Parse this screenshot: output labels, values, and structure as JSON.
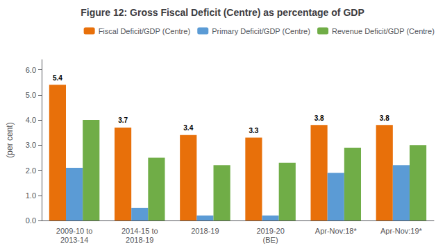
{
  "chart_data": {
    "type": "bar",
    "title": "Figure 12: Gross Fiscal Deficit (Centre) as percentage of GDP",
    "ylabel": "(per cent)",
    "categories": [
      "2009-10 to\n2013-14",
      "2014-15 to\n2018-19",
      "2018-19",
      "2019-20\n(BE)",
      "Apr-Nov:18*",
      "Apr-Nov:19*"
    ],
    "series": [
      {
        "name": "Fiscal Deficit/GDP (Centre)",
        "color": "#E8700A",
        "values": [
          5.4,
          3.7,
          3.4,
          3.3,
          3.8,
          3.8
        ],
        "data_labels": true
      },
      {
        "name": "Primary Deficit/GDP (Centre)",
        "color": "#5B9BD5",
        "values": [
          2.1,
          0.5,
          0.2,
          0.2,
          1.9,
          2.2
        ]
      },
      {
        "name": "Revenue Deficit/GDP (Centre)",
        "color": "#70AD47",
        "values": [
          4.0,
          2.5,
          2.2,
          2.3,
          2.9,
          3.0
        ]
      }
    ],
    "ylim": [
      0,
      6.4
    ],
    "yticks": [
      {
        "value": 0,
        "label": "0.0"
      },
      {
        "value": 1,
        "label": "1.0"
      },
      {
        "value": 2,
        "label": "2.0"
      },
      {
        "value": 3,
        "label": "3.0"
      },
      {
        "value": 4,
        "label": "4.0"
      },
      {
        "value": 5,
        "label": "5.0"
      },
      {
        "value": 6,
        "label": "6.0"
      }
    ],
    "grid": false,
    "legend": "upper right"
  }
}
